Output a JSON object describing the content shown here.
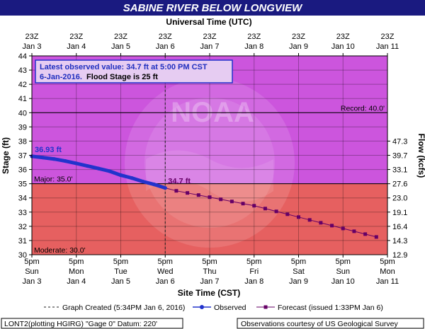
{
  "chart_data": {
    "type": "line",
    "title": "SABINE RIVER BELOW LONGVIEW",
    "top_axis_title": "Universal Time (UTC)",
    "bottom_axis_title": "Site Time (CST)",
    "ylabel": "Stage (ft)",
    "ylabel_right": "Flow (kcfs)",
    "ylim": [
      30,
      44
    ],
    "y_ticks": [
      30,
      31,
      32,
      33,
      34,
      35,
      36,
      37,
      38,
      39,
      40,
      41,
      42,
      43,
      44
    ],
    "x_range_days": [
      3,
      11
    ],
    "bottom_ticks": [
      {
        "day": 3,
        "line1": "5pm",
        "line2": "Sun",
        "line3": "Jan 3"
      },
      {
        "day": 4,
        "line1": "5pm",
        "line2": "Mon",
        "line3": "Jan 4"
      },
      {
        "day": 5,
        "line1": "5pm",
        "line2": "Tue",
        "line3": "Jan 5"
      },
      {
        "day": 6,
        "line1": "5pm",
        "line2": "Wed",
        "line3": "Jan 6"
      },
      {
        "day": 7,
        "line1": "5pm",
        "line2": "Thu",
        "line3": "Jan 7"
      },
      {
        "day": 8,
        "line1": "5pm",
        "line2": "Fri",
        "line3": "Jan 8"
      },
      {
        "day": 9,
        "line1": "5pm",
        "line2": "Sat",
        "line3": "Jan 9"
      },
      {
        "day": 10,
        "line1": "5pm",
        "line2": "Sun",
        "line3": "Jan 10"
      },
      {
        "day": 11,
        "line1": "5pm",
        "line2": "Mon",
        "line3": "Jan 11"
      }
    ],
    "top_ticks": [
      {
        "day": 3,
        "line1": "23Z",
        "line2": "Jan 3"
      },
      {
        "day": 4,
        "line1": "23Z",
        "line2": "Jan 4"
      },
      {
        "day": 5,
        "line1": "23Z",
        "line2": "Jan 5"
      },
      {
        "day": 6,
        "line1": "23Z",
        "line2": "Jan 6"
      },
      {
        "day": 7,
        "line1": "23Z",
        "line2": "Jan 7"
      },
      {
        "day": 8,
        "line1": "23Z",
        "line2": "Jan 8"
      },
      {
        "day": 9,
        "line1": "23Z",
        "line2": "Jan 9"
      },
      {
        "day": 10,
        "line1": "23Z",
        "line2": "Jan 10"
      },
      {
        "day": 11,
        "line1": "23Z",
        "line2": "Jan 11"
      }
    ],
    "flow_ticks": [
      {
        "stage": 31,
        "label": "14.3"
      },
      {
        "stage": 32,
        "label": "16.4"
      },
      {
        "stage": 33,
        "label": "19.1"
      },
      {
        "stage": 34,
        "label": "23.0"
      },
      {
        "stage": 35,
        "label": "27.6"
      },
      {
        "stage": 36,
        "label": "33.1"
      },
      {
        "stage": 37,
        "label": "39.7"
      },
      {
        "stage": 38,
        "label": "47.3"
      }
    ],
    "flow_bottom_label": {
      "stage": 30,
      "label": "12.9"
    },
    "zones": [
      {
        "from": 35,
        "to": 44,
        "color": "#cc55dd"
      },
      {
        "from": 30,
        "to": 35,
        "color": "#e66060"
      }
    ],
    "thresholds": [
      {
        "label": "Record: 40.0'",
        "value": 40,
        "color": "#000000"
      },
      {
        "label": "Major: 35.0'",
        "value": 35,
        "color": "#000000"
      },
      {
        "label": "Moderate: 30.0'",
        "value": 30,
        "color": "#000000"
      }
    ],
    "series": [
      {
        "name": "Observed",
        "color": "#2233cc",
        "x": [
          3.0,
          3.25,
          3.5,
          3.75,
          4.0,
          4.25,
          4.5,
          4.75,
          5.0,
          5.25,
          5.5,
          5.75,
          6.0
        ],
        "y": [
          36.93,
          36.84,
          36.74,
          36.6,
          36.43,
          36.25,
          36.07,
          35.88,
          35.6,
          35.4,
          35.15,
          34.95,
          34.7
        ],
        "start_label": "36.93 ft",
        "end_label": "34.7 ft"
      },
      {
        "name": "Forecast (issued 1:33PM Jan 6)",
        "color": "#660066",
        "x": [
          6.0,
          6.25,
          6.5,
          6.75,
          7.0,
          7.25,
          7.5,
          7.75,
          8.0,
          8.25,
          8.5,
          8.75,
          9.0,
          9.25,
          9.5,
          9.75,
          10.0,
          10.25,
          10.5,
          10.75
        ],
        "y": [
          34.7,
          34.5,
          34.35,
          34.2,
          34.05,
          33.9,
          33.75,
          33.6,
          33.45,
          33.25,
          33.05,
          32.85,
          32.65,
          32.45,
          32.25,
          32.05,
          31.85,
          31.65,
          31.45,
          31.25
        ]
      }
    ],
    "graph_created": {
      "day": 6,
      "label": "Graph Created (5:34PM Jan 6, 2016)"
    },
    "info_box": {
      "line1": "Latest observed value: 34.7 ft at 5:00 PM CST",
      "line2_date": "6-Jan-2016.",
      "line2_rest": "  Flood Stage is 25 ft"
    },
    "watermark": "NATIONAL OCEANIC AND ATMOSPHERIC ADMINISTRATION - U.S. DEPARTMENT OF COMMERCE - NOAA",
    "footer": {
      "left": "LONT2(plotting HGIRG) \"Gage 0\" Datum: 220'",
      "right": "Observations courtesy of US Geological Survey"
    },
    "grid": true
  },
  "colors": {
    "title_bg": "#1a1a80",
    "title_text": "#ffffff",
    "observed": "#2233cc",
    "forecast": "#660066",
    "info_border": "#2233cc",
    "info_text": "#1f2fbf"
  }
}
